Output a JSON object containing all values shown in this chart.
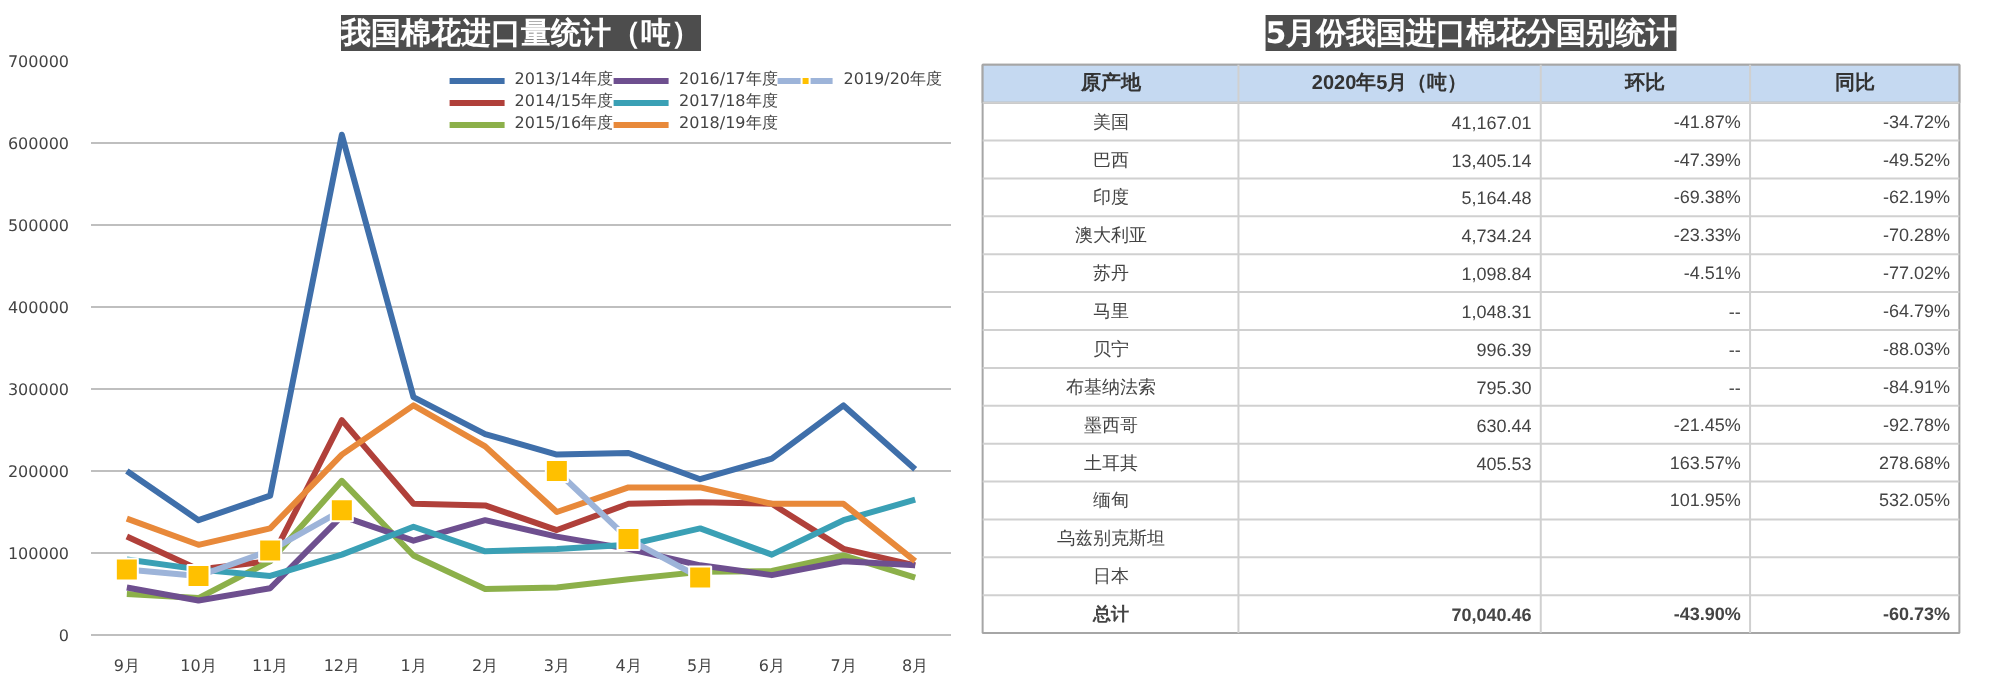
{
  "chart_data": [
    {
      "type": "line",
      "title": "我国棉花进口量统计（吨）",
      "categories": [
        "9月",
        "10月",
        "11月",
        "12月",
        "1月",
        "2月",
        "3月",
        "4月",
        "5月",
        "6月",
        "7月",
        "8月"
      ],
      "series": [
        {
          "name": "2013/14年度",
          "color": "#3f6faa",
          "values": [
            200000,
            140000,
            170000,
            610000,
            290000,
            245000,
            220000,
            222000,
            190000,
            215000,
            280000,
            202000
          ]
        },
        {
          "name": "2014/15年度",
          "color": "#b0403a",
          "values": [
            120000,
            80000,
            90000,
            262000,
            160000,
            158000,
            128000,
            160000,
            162000,
            160000,
            105000,
            85000
          ]
        },
        {
          "name": "2015/16年度",
          "color": "#8cb04a",
          "values": [
            50000,
            45000,
            90000,
            188000,
            97000,
            56000,
            58000,
            68000,
            77000,
            78000,
            97000,
            70000
          ]
        },
        {
          "name": "2016/17年度",
          "color": "#6e4f8f",
          "values": [
            58000,
            42000,
            57000,
            145000,
            115000,
            140000,
            120000,
            105000,
            85000,
            73000,
            90000,
            85000
          ]
        },
        {
          "name": "2017/18年度",
          "color": "#3aa0b5",
          "values": [
            92000,
            80000,
            72000,
            98000,
            132000,
            102000,
            105000,
            110000,
            130000,
            98000,
            140000,
            165000
          ]
        },
        {
          "name": "2018/19年度",
          "color": "#e8893a",
          "values": [
            142000,
            110000,
            130000,
            220000,
            280000,
            230000,
            150000,
            180000,
            180000,
            160000,
            160000,
            90000
          ]
        },
        {
          "name": "2019/20年度",
          "color": "#9db4d9",
          "marker": "square",
          "colors": [
            "#ffc000",
            "#ffc000",
            "#ffc000",
            "#ffc000",
            null,
            null,
            "#ffc000",
            "#ffc000",
            "#ffc000",
            null,
            null,
            null
          ],
          "values": [
            80000,
            72000,
            103000,
            152000,
            null,
            null,
            200000,
            117000,
            70000,
            null,
            null,
            null
          ]
        }
      ],
      "ylim": [
        0,
        700000
      ],
      "yticks": [
        0,
        100000,
        200000,
        300000,
        400000,
        500000,
        600000,
        700000
      ],
      "grid": "y",
      "legend": "top right"
    },
    {
      "type": "other",
      "title": "5月份我国进口棉花分国别统计",
      "categories": [
        "原产地",
        "2020年5月（吨）",
        "环比",
        "同比"
      ],
      "y_categories": [
        "美国",
        "巴西",
        "印度",
        "澳大利亚",
        "苏丹",
        "马里",
        "贝宁",
        "布基纳法索",
        "墨西哥",
        "土耳其",
        "缅甸",
        "乌兹别克斯坦",
        "日本",
        "总计"
      ],
      "cell_labels": [
        [
          "41,167.01",
          "-41.87%",
          "-34.72%"
        ],
        [
          "13,405.14",
          "-47.39%",
          "-49.52%"
        ],
        [
          "5,164.48",
          "-69.38%",
          "-62.19%"
        ],
        [
          "4,734.24",
          "-23.33%",
          "-70.28%"
        ],
        [
          "1,098.84",
          "-4.51%",
          "-77.02%"
        ],
        [
          "1,048.31",
          "--",
          "-64.79%"
        ],
        [
          "996.39",
          "--",
          "-88.03%"
        ],
        [
          "795.30",
          "--",
          "-84.91%"
        ],
        [
          "630.44",
          "-21.45%",
          "-92.78%"
        ],
        [
          "405.53",
          "163.57%",
          "278.68%"
        ],
        [
          null,
          "101.95%",
          "532.05%"
        ],
        [
          null,
          null,
          null
        ],
        [
          null,
          null,
          null
        ],
        [
          "70,040.46",
          "-43.90%",
          "-60.73%"
        ]
      ]
    }
  ]
}
